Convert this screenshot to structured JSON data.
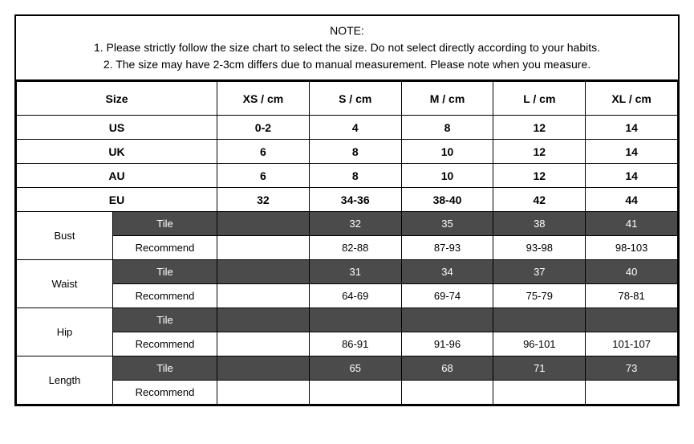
{
  "note": {
    "title": "NOTE:",
    "line1": "1. Please strictly follow the size chart  to select the size. Do not select directly according to your habits.",
    "line2": "2. The size may have 2-3cm differs due to manual measurement. Please note when you measure."
  },
  "headers": {
    "size": "Size",
    "xs": "XS / cm",
    "s": "S / cm",
    "m": "M / cm",
    "l": "L / cm",
    "xl": "XL / cm"
  },
  "regions": {
    "us": {
      "label": "US",
      "xs": "0-2",
      "s": "4",
      "m": "8",
      "l": "12",
      "xl": "14"
    },
    "uk": {
      "label": "UK",
      "xs": "6",
      "s": "8",
      "m": "10",
      "l": "12",
      "xl": "14"
    },
    "au": {
      "label": "AU",
      "xs": "6",
      "s": "8",
      "m": "10",
      "l": "12",
      "xl": "14"
    },
    "eu": {
      "label": "EU",
      "xs": "32",
      "s": "34-36",
      "m": "38-40",
      "l": "42",
      "xl": "44"
    }
  },
  "sublabels": {
    "tile": "Tile",
    "recommend": "Recommend"
  },
  "measures": {
    "bust": {
      "label": "Bust",
      "tile": {
        "xs": "",
        "s": "32",
        "m": "35",
        "l": "38",
        "xl": "41"
      },
      "recommend": {
        "xs": "",
        "s": "82-88",
        "m": "87-93",
        "l": "93-98",
        "xl": "98-103"
      }
    },
    "waist": {
      "label": "Waist",
      "tile": {
        "xs": "",
        "s": "31",
        "m": "34",
        "l": "37",
        "xl": "40"
      },
      "recommend": {
        "xs": "",
        "s": "64-69",
        "m": "69-74",
        "l": "75-79",
        "xl": "78-81"
      }
    },
    "hip": {
      "label": "Hip",
      "tile": {
        "xs": "",
        "s": "",
        "m": "",
        "l": "",
        "xl": ""
      },
      "recommend": {
        "xs": "",
        "s": "86-91",
        "m": "91-96",
        "l": "96-101",
        "xl": "101-107"
      }
    },
    "length": {
      "label": "Length",
      "tile": {
        "xs": "",
        "s": "65",
        "m": "68",
        "l": "71",
        "xl": "73"
      },
      "recommend": {
        "xs": "",
        "s": "",
        "m": "",
        "l": "",
        "xl": ""
      }
    }
  },
  "style": {
    "tile_bg": "#4b4b4b",
    "tile_fg": "#ffffff",
    "border_color": "#000000",
    "background": "#ffffff",
    "font_family": "Arial",
    "header_fontsize": 14,
    "measure_label_fontsize": 18
  }
}
